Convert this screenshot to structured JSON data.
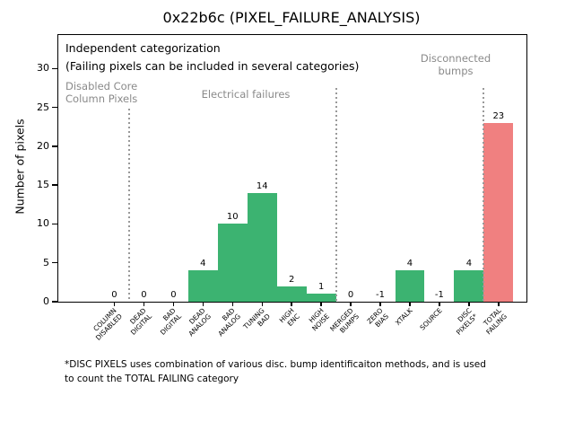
{
  "title": "0x22b6c (PIXEL_FAILURE_ANALYSIS)",
  "ylabel": "Number of pixels",
  "annotations": {
    "independent_line1": "Independent categorization",
    "independent_line2": "(Failing pixels can be included in several categories)",
    "sections": [
      {
        "label_lines": [
          "Disabled Core",
          "Column Pixels"
        ]
      },
      {
        "label_lines": [
          "Electrical failures"
        ]
      },
      {
        "label_lines": [
          "Disconnected",
          "bumps"
        ]
      }
    ]
  },
  "footnote": {
    "line1": "*DISC PIXELS uses combination of various disc. bump identificaiton methods, and is used",
    "line2": "to count the TOTAL FAILING category"
  },
  "chart_data": {
    "type": "bar",
    "title": "0x22b6c (PIXEL_FAILURE_ANALYSIS)",
    "xlabel": "",
    "ylabel": "Number of pixels",
    "categories": [
      "COLUMN\nDISABLED",
      "DEAD\nDIGITAL",
      "BAD\nDIGITAL",
      "DEAD\nANALOG",
      "BAD\nANALOG",
      "TUNING\nBAD",
      "HIGH\nENC",
      "HIGH\nNOISE",
      "MERGED\nBUMPS",
      "ZERO\nBIAS",
      "XTALK",
      "SOURCE",
      "DISC\nPIXELS*",
      "TOTAL\nFAILING"
    ],
    "values": [
      0,
      0,
      0,
      4,
      10,
      14,
      2,
      1,
      0,
      -1,
      4,
      -1,
      4,
      23
    ],
    "bar_colors": [
      "#3CB371",
      "#3CB371",
      "#3CB371",
      "#3CB371",
      "#3CB371",
      "#3CB371",
      "#3CB371",
      "#3CB371",
      "#3CB371",
      "#3CB371",
      "#3CB371",
      "#3CB371",
      "#3CB371",
      "#F08080"
    ],
    "value_labels": [
      "0",
      "0",
      "0",
      "4",
      "10",
      "14",
      "2",
      "1",
      "0",
      "-1",
      "4",
      "-1",
      "4",
      "23"
    ],
    "yticks": [
      0,
      5,
      10,
      15,
      20,
      25,
      30
    ],
    "ylim": [
      0,
      34.3
    ],
    "grid": false,
    "legend": "none",
    "section_divider_after_index": [
      0,
      7,
      12
    ],
    "divider_color": "#999999",
    "annotation_gray_color": "#8a8a8a",
    "green_hex": "#3CB371",
    "red_hex": "#F08080"
  }
}
